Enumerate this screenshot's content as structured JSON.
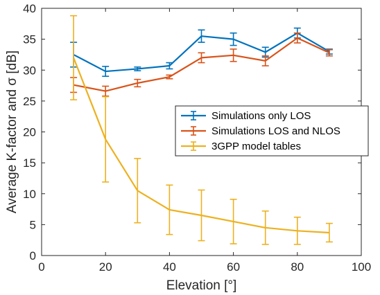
{
  "chart_data": {
    "type": "line",
    "xlabel": "Elevation [°]",
    "ylabel": "Average K-factor and σ [dB]",
    "xlim": [
      0,
      100
    ],
    "ylim": [
      0,
      40
    ],
    "xticks": [
      0,
      20,
      40,
      60,
      80,
      100
    ],
    "yticks": [
      0,
      5,
      10,
      15,
      20,
      25,
      30,
      35,
      40
    ],
    "grid": false,
    "legend_position": "right",
    "x": [
      10,
      20,
      30,
      40,
      50,
      60,
      70,
      80,
      90
    ],
    "series": [
      {
        "name": "Simulations only LOS",
        "color": "#0072BD",
        "values": [
          32.5,
          29.8,
          30.2,
          30.7,
          35.5,
          35.0,
          32.9,
          36.0,
          33.0
        ],
        "error": [
          2.0,
          0.8,
          0.3,
          0.5,
          1.0,
          1.0,
          0.8,
          0.8,
          0.4
        ]
      },
      {
        "name": "Simulations LOS and NLOS",
        "color": "#D95319",
        "values": [
          27.6,
          26.6,
          27.9,
          28.9,
          32.0,
          32.4,
          31.5,
          35.2,
          32.8
        ],
        "error": [
          1.2,
          0.8,
          0.6,
          0.3,
          0.8,
          1.0,
          0.8,
          0.8,
          0.5
        ]
      },
      {
        "name": "3GPP model tables",
        "color": "#EDB120",
        "values": [
          32.0,
          18.8,
          10.5,
          7.4,
          6.5,
          5.5,
          4.5,
          4.0,
          3.7
        ],
        "error": [
          6.8,
          6.9,
          5.2,
          4.0,
          4.1,
          3.6,
          2.7,
          2.2,
          1.5
        ]
      }
    ]
  }
}
